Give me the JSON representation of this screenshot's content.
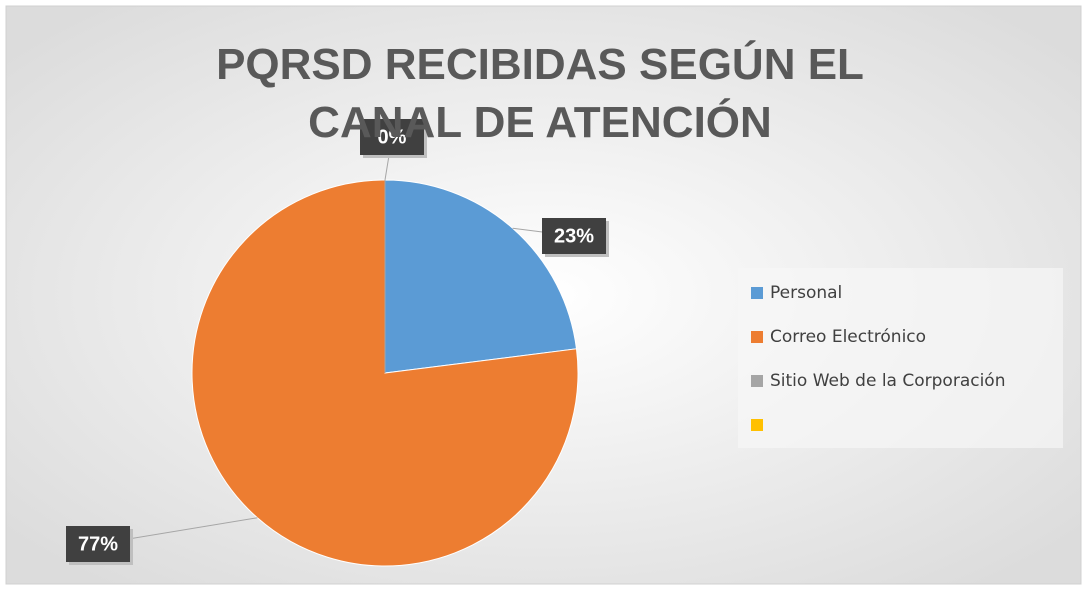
{
  "chart_data": {
    "type": "pie",
    "title": "PQRSD RECIBIDAS SEGÚN EL CANAL DE ATENCIÓN",
    "categories": [
      "Personal",
      "Correo Electrónico",
      "Sitio Web de la Corporación",
      null
    ],
    "values": [
      23,
      77,
      0,
      null
    ],
    "value_labels": [
      "23%",
      "77%",
      "0%",
      null
    ],
    "colors": [
      "#5b9bd5",
      "#ed7d31",
      "#a5a5a5",
      "#ffc000"
    ],
    "legend": "right"
  }
}
